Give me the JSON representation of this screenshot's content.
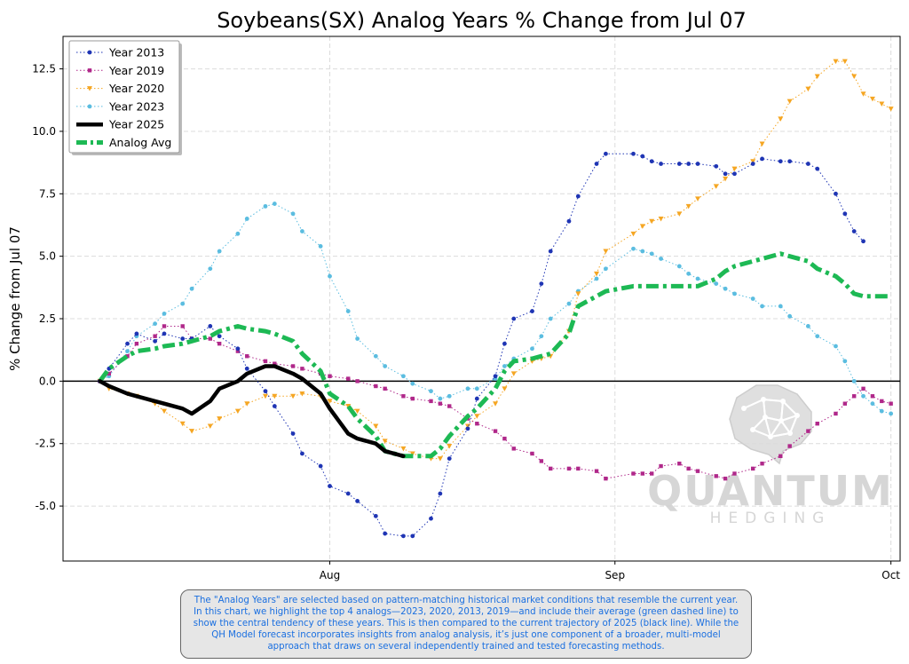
{
  "chart_data": {
    "type": "line",
    "title": "Soybeans(SX) Analog Years % Change from Jul 07",
    "xlabel": "",
    "ylabel": "% Change from Jul 07",
    "x_start": "Jul 07",
    "x_ticks": [
      {
        "day": 25,
        "label": "Aug"
      },
      {
        "day": 56,
        "label": "Sep"
      },
      {
        "day": 86,
        "label": "Oct"
      }
    ],
    "xlim": [
      -4,
      87
    ],
    "ylim": [
      -7.2,
      13.8
    ],
    "y_ticks": [
      -5.0,
      -2.5,
      0.0,
      2.5,
      5.0,
      7.5,
      10.0,
      12.5
    ],
    "y_tick_labels": [
      "-5.0",
      "-2.5",
      "0.0",
      "2.5",
      "5.0",
      "7.5",
      "10.0",
      "12.5"
    ],
    "grid": true,
    "zero_line": true,
    "legend_position": "top-left",
    "series": [
      {
        "name": "Year 2013",
        "color": "#1f35b4",
        "style": "dotted",
        "marker": "circle",
        "x": [
          0,
          1,
          3,
          4,
          6,
          7,
          9,
          10,
          12,
          13,
          15,
          16,
          18,
          19,
          21,
          22,
          24,
          25,
          27,
          28,
          30,
          31,
          33,
          34,
          36,
          37,
          38,
          40,
          41,
          43,
          44,
          45,
          47,
          48,
          49,
          51,
          52,
          54,
          55,
          58,
          59,
          60,
          61,
          63,
          64,
          65,
          67,
          68,
          69,
          71,
          72,
          74,
          75,
          77,
          78,
          80,
          81,
          82,
          83
        ],
        "y": [
          0,
          0.5,
          1.5,
          1.9,
          1.6,
          1.9,
          1.7,
          1.7,
          2.2,
          1.8,
          1.3,
          0.5,
          -0.4,
          -1.0,
          -2.1,
          -2.9,
          -3.4,
          -4.2,
          -4.5,
          -4.8,
          -5.4,
          -6.1,
          -6.2,
          -6.2,
          -5.5,
          -4.5,
          -3.1,
          -1.9,
          -0.7,
          0.2,
          1.5,
          2.5,
          2.8,
          3.9,
          5.2,
          6.4,
          7.4,
          8.7,
          9.1,
          9.1,
          9.0,
          8.8,
          8.7,
          8.7,
          8.7,
          8.7,
          8.6,
          8.3,
          8.3,
          8.7,
          8.9,
          8.8,
          8.8,
          8.7,
          8.5,
          7.5,
          6.7,
          6.0,
          5.6
        ]
      },
      {
        "name": "Year 2019",
        "color": "#b0288a",
        "style": "dotted",
        "marker": "square",
        "x": [
          0,
          1,
          3,
          4,
          6,
          7,
          9,
          10,
          12,
          13,
          15,
          16,
          18,
          19,
          21,
          22,
          24,
          25,
          27,
          28,
          30,
          31,
          33,
          34,
          36,
          37,
          38,
          40,
          41,
          43,
          44,
          45,
          47,
          48,
          49,
          51,
          52,
          54,
          55,
          58,
          59,
          60,
          61,
          63,
          64,
          65,
          67,
          68,
          69,
          71,
          72,
          74,
          75,
          77,
          78,
          80,
          81,
          82,
          83,
          84,
          85,
          86
        ],
        "y": [
          0,
          0.3,
          1.0,
          1.5,
          1.8,
          2.2,
          2.2,
          1.7,
          1.7,
          1.5,
          1.2,
          1.0,
          0.8,
          0.7,
          0.6,
          0.5,
          0.3,
          0.2,
          0.1,
          0.0,
          -0.2,
          -0.3,
          -0.6,
          -0.7,
          -0.8,
          -0.9,
          -1.0,
          -1.5,
          -1.7,
          -2.0,
          -2.3,
          -2.7,
          -2.9,
          -3.2,
          -3.5,
          -3.5,
          -3.5,
          -3.6,
          -3.9,
          -3.7,
          -3.7,
          -3.7,
          -3.4,
          -3.3,
          -3.5,
          -3.6,
          -3.8,
          -3.9,
          -3.7,
          -3.5,
          -3.3,
          -3.0,
          -2.6,
          -2.0,
          -1.7,
          -1.3,
          -0.9,
          -0.6,
          -0.3,
          -0.6,
          -0.8,
          -0.9
        ]
      },
      {
        "name": "Year 2020",
        "color": "#f5a623",
        "style": "dotted",
        "marker": "triangle-down",
        "x": [
          0,
          1,
          3,
          4,
          6,
          7,
          9,
          10,
          12,
          13,
          15,
          16,
          18,
          19,
          21,
          22,
          24,
          25,
          27,
          28,
          30,
          31,
          33,
          34,
          36,
          37,
          38,
          40,
          41,
          43,
          44,
          45,
          47,
          48,
          49,
          51,
          52,
          54,
          55,
          58,
          59,
          60,
          61,
          63,
          64,
          65,
          67,
          68,
          69,
          71,
          72,
          74,
          75,
          77,
          78,
          80,
          81,
          82,
          83,
          84,
          85,
          86
        ],
        "y": [
          0,
          -0.3,
          -0.5,
          -0.6,
          -0.9,
          -1.2,
          -1.7,
          -2.0,
          -1.8,
          -1.5,
          -1.2,
          -0.9,
          -0.6,
          -0.6,
          -0.6,
          -0.5,
          -0.6,
          -0.8,
          -1.0,
          -1.2,
          -1.8,
          -2.4,
          -2.7,
          -2.9,
          -3.1,
          -3.1,
          -2.6,
          -1.8,
          -1.4,
          -0.9,
          -0.3,
          0.3,
          0.8,
          0.9,
          1.0,
          2.0,
          3.5,
          4.3,
          5.2,
          5.9,
          6.2,
          6.4,
          6.5,
          6.7,
          7.0,
          7.3,
          7.8,
          8.1,
          8.5,
          8.8,
          9.5,
          10.5,
          11.2,
          11.7,
          12.2,
          12.8,
          12.8,
          12.2,
          11.5,
          11.3,
          11.1,
          10.9
        ]
      },
      {
        "name": "Year 2023",
        "color": "#5bbde0",
        "style": "dotted",
        "marker": "circle",
        "x": [
          0,
          1,
          3,
          4,
          6,
          7,
          9,
          10,
          12,
          13,
          15,
          16,
          18,
          19,
          21,
          22,
          24,
          25,
          27,
          28,
          30,
          31,
          33,
          34,
          36,
          37,
          38,
          40,
          41,
          43,
          44,
          45,
          47,
          48,
          49,
          51,
          52,
          54,
          55,
          58,
          59,
          60,
          61,
          63,
          64,
          65,
          67,
          68,
          69,
          71,
          72,
          74,
          75,
          77,
          78,
          80,
          81,
          82,
          83,
          84,
          85,
          86
        ],
        "y": [
          0,
          0.2,
          1.2,
          1.8,
          2.3,
          2.7,
          3.1,
          3.7,
          4.5,
          5.2,
          5.9,
          6.5,
          7.0,
          7.1,
          6.7,
          6.0,
          5.4,
          4.2,
          2.8,
          1.7,
          1.0,
          0.6,
          0.2,
          -0.1,
          -0.4,
          -0.7,
          -0.6,
          -0.3,
          -0.3,
          0.1,
          0.6,
          0.9,
          1.3,
          1.8,
          2.5,
          3.1,
          3.6,
          4.1,
          4.5,
          5.3,
          5.2,
          5.1,
          4.9,
          4.6,
          4.3,
          4.1,
          3.9,
          3.7,
          3.5,
          3.3,
          3.0,
          3.0,
          2.6,
          2.2,
          1.8,
          1.4,
          0.8,
          0.0,
          -0.6,
          -0.9,
          -1.2,
          -1.3
        ]
      },
      {
        "name": "Year 2025",
        "color": "#000000",
        "style": "solid",
        "marker": "none",
        "x": [
          0,
          1,
          3,
          4,
          6,
          7,
          9,
          10,
          12,
          13,
          15,
          16,
          18,
          19,
          21,
          22,
          24,
          25,
          27,
          28,
          30,
          31,
          33
        ],
        "y": [
          0,
          -0.2,
          -0.5,
          -0.6,
          -0.8,
          -0.9,
          -1.1,
          -1.3,
          -0.8,
          -0.3,
          0.0,
          0.3,
          0.6,
          0.6,
          0.3,
          0.1,
          -0.5,
          -1.1,
          -2.1,
          -2.3,
          -2.5,
          -2.8,
          -3.0
        ]
      },
      {
        "name": "Analog Avg",
        "color": "#1db954",
        "style": "dashdot",
        "marker": "none",
        "x": [
          0,
          1,
          3,
          4,
          6,
          7,
          9,
          10,
          12,
          13,
          15,
          16,
          18,
          19,
          21,
          22,
          24,
          25,
          27,
          28,
          30,
          31,
          33,
          34,
          36,
          37,
          38,
          40,
          41,
          43,
          44,
          45,
          47,
          48,
          49,
          51,
          52,
          54,
          55,
          58,
          59,
          60,
          61,
          63,
          64,
          65,
          67,
          68,
          69,
          71,
          72,
          74,
          75,
          77,
          78,
          80,
          81,
          82,
          83,
          84,
          85,
          86
        ],
        "y": [
          0,
          0.5,
          1.0,
          1.2,
          1.3,
          1.4,
          1.5,
          1.6,
          1.8,
          2.0,
          2.2,
          2.1,
          2.0,
          1.9,
          1.6,
          1.1,
          0.4,
          -0.5,
          -1.0,
          -1.5,
          -2.2,
          -2.8,
          -3.0,
          -3.0,
          -3.0,
          -2.7,
          -2.2,
          -1.4,
          -1.1,
          -0.3,
          0.4,
          0.8,
          0.9,
          1.0,
          1.1,
          1.9,
          3.0,
          3.4,
          3.6,
          3.8,
          3.8,
          3.8,
          3.8,
          3.8,
          3.8,
          3.8,
          4.1,
          4.4,
          4.6,
          4.8,
          4.9,
          5.1,
          5.0,
          4.8,
          4.5,
          4.2,
          3.9,
          3.5,
          3.4,
          3.4,
          3.4,
          3.4
        ]
      }
    ]
  },
  "watermark": {
    "big": "QUANTUM",
    "small": "HEDGING"
  },
  "note": "The \"Analog Years\" are selected based on pattern-matching historical market conditions that resemble the current year. In this chart, we highlight the top 4 analogs—2023, 2020, 2013, 2019—and include their average (green dashed line) to show the central tendency of these years. This is then compared to the current trajectory of 2025 (black line). While the QH Model forecast incorporates insights from analog analysis, it’s just one component of a broader, multi-model approach that draws on several independently trained and tested forecasting methods."
}
